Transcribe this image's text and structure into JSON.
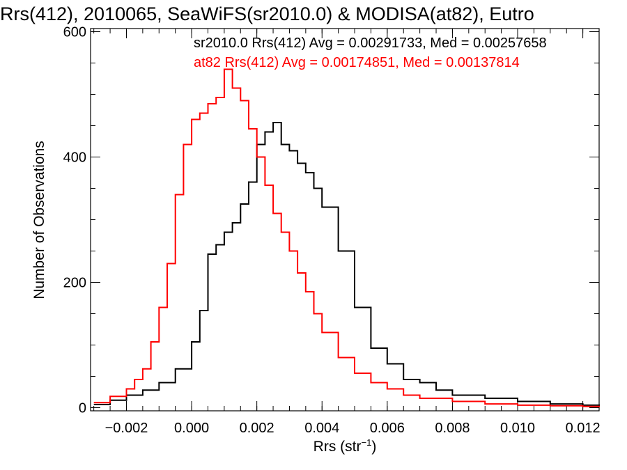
{
  "chart_data": {
    "type": "line",
    "title": "Rrs(412), 2010065, SeaWiFS(sr2010.0) & MODISA(at82), Eutro",
    "xlabel_main": "Rrs (str",
    "xlabel_sup": "−1",
    "xlabel_close": ")",
    "ylabel": "Number of Observations",
    "xlim": [
      -0.0031,
      0.0125
    ],
    "ylim": [
      -5,
      605
    ],
    "x_ticks": [
      -0.002,
      0.0,
      0.002,
      0.004,
      0.006,
      0.008,
      0.01,
      0.012
    ],
    "x_tick_labels": [
      "−0.002",
      "0.000",
      "0.002",
      "0.004",
      "0.006",
      "0.008",
      "0.010",
      "0.012"
    ],
    "y_ticks": [
      0,
      200,
      400,
      600
    ],
    "y_tick_labels": [
      "0",
      "200",
      "400",
      "600"
    ],
    "x_minor_step": 0.0005,
    "y_minor_step": 50,
    "grid": false,
    "legend": {
      "placement": "top-right",
      "entries": [
        {
          "text": "sr2010.0 Rrs(412) Avg = 0.00291733, Med = 0.00257658",
          "color": "#000000"
        },
        {
          "text": "at82 Rrs(412) Avg = 0.00174851, Med = 0.00137814",
          "color": "#ff0000"
        }
      ]
    },
    "series": [
      {
        "color": "#000000",
        "x": [
          -0.003,
          -0.0025,
          -0.002,
          -0.0015,
          -0.001,
          -0.0005,
          0.0,
          0.00025,
          0.0005,
          0.00075,
          0.001,
          0.00125,
          0.0015,
          0.00175,
          0.002,
          0.00225,
          0.0025,
          0.00275,
          0.003,
          0.00325,
          0.0035,
          0.00375,
          0.004,
          0.0045,
          0.005,
          0.0055,
          0.006,
          0.0065,
          0.007,
          0.0075,
          0.008,
          0.009,
          0.01,
          0.011,
          0.012,
          0.0125
        ],
        "values": [
          5,
          12,
          20,
          28,
          40,
          62,
          105,
          155,
          245,
          260,
          280,
          295,
          325,
          360,
          420,
          440,
          455,
          420,
          410,
          390,
          375,
          350,
          320,
          250,
          160,
          95,
          70,
          45,
          40,
          28,
          20,
          15,
          10,
          6,
          4,
          3
        ]
      },
      {
        "color": "#ff0000",
        "x": [
          -0.003,
          -0.0025,
          -0.002,
          -0.00175,
          -0.0015,
          -0.00125,
          -0.001,
          -0.00075,
          -0.0005,
          -0.00025,
          0.0,
          0.00025,
          0.0005,
          0.00075,
          0.001,
          0.00125,
          0.0015,
          0.00175,
          0.002,
          0.00225,
          0.0025,
          0.00275,
          0.003,
          0.00325,
          0.0035,
          0.00375,
          0.004,
          0.0045,
          0.005,
          0.0055,
          0.006,
          0.0065,
          0.007,
          0.008,
          0.009,
          0.01,
          0.011,
          0.012,
          0.0125
        ],
        "values": [
          8,
          18,
          30,
          45,
          62,
          105,
          160,
          230,
          340,
          420,
          460,
          470,
          485,
          495,
          540,
          510,
          490,
          445,
          400,
          355,
          310,
          280,
          250,
          215,
          185,
          150,
          120,
          80,
          55,
          40,
          30,
          20,
          15,
          10,
          6,
          4,
          3,
          2,
          1
        ]
      }
    ]
  }
}
